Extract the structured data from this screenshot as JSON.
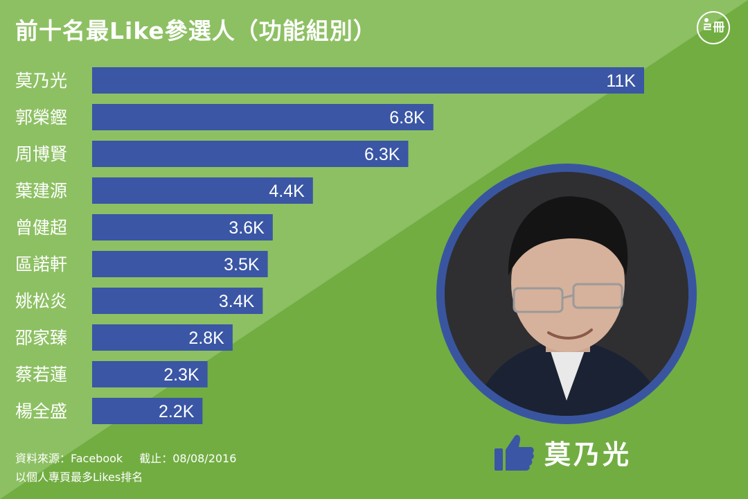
{
  "title": "前十名最Like參選人（功能組別）",
  "logo_text": "ㄹ冊",
  "colors": {
    "bg_light": "#8dc063",
    "bg_dark": "#72ad42",
    "bar": "#3a56a4",
    "text": "#ffffff",
    "photo_frame": "#3a55a0"
  },
  "chart_data": {
    "type": "bar",
    "orientation": "horizontal",
    "title": "前十名最Like參選人（功能組別）",
    "categories": [
      "莫乃光",
      "郭榮鏗",
      "周博賢",
      "葉建源",
      "曾健超",
      "區諾軒",
      "姚松炎",
      "邵家臻",
      "蔡若蓮",
      "楊全盛"
    ],
    "values": [
      11000,
      6800,
      6300,
      4400,
      3600,
      3500,
      3400,
      2800,
      2300,
      2200
    ],
    "value_labels": [
      "11K",
      "6.8K",
      "6.3K",
      "4.4K",
      "3.6K",
      "3.5K",
      "3.4K",
      "2.8K",
      "2.3K",
      "2.2K"
    ],
    "xlim": [
      0,
      11000
    ],
    "grid": false
  },
  "featured": {
    "name": "莫乃光",
    "icon": "thumbs-up-icon"
  },
  "footer": {
    "source": "資料來源：Facebook",
    "cutoff": "截止：08/08/2016",
    "note": "以個人專頁最多Likes排名"
  }
}
